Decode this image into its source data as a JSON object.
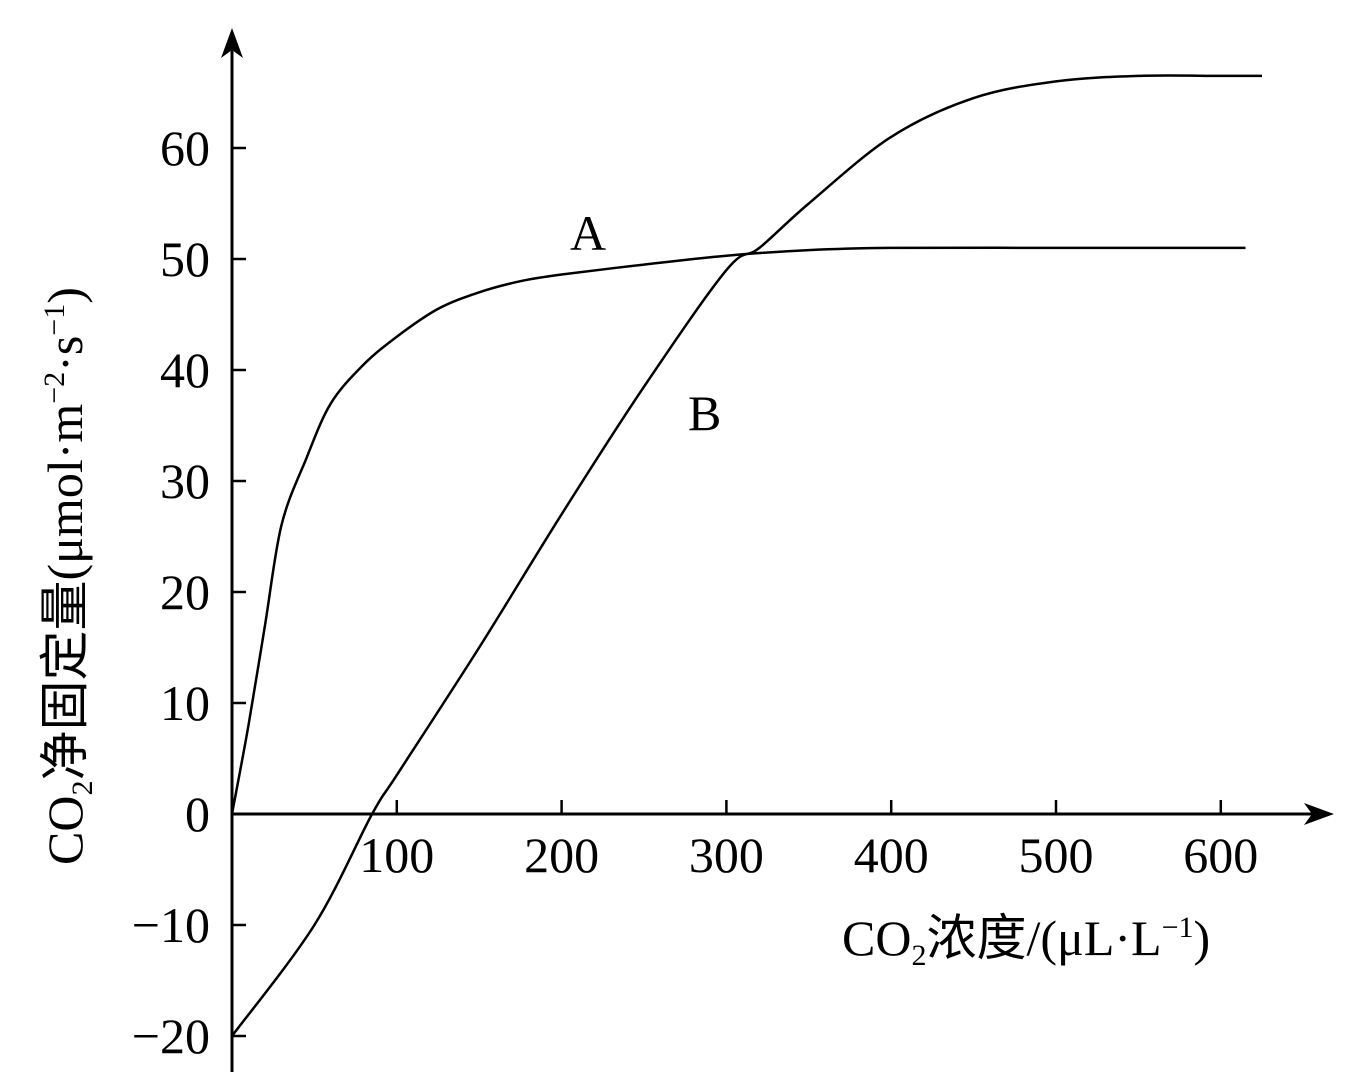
{
  "chart_data": {
    "type": "line",
    "xlabel": {
      "prefix": "CO",
      "sub": "2",
      "rest": "浓度/(μL·L",
      "sup": "−1",
      "end": ")"
    },
    "ylabel": {
      "prefix": "CO",
      "sub": "2",
      "rest": "净固定量(μmol·m",
      "sup1": "−2",
      "mid": "·s",
      "sup2": "−1",
      "end": ")"
    },
    "xlim": [
      0,
      660
    ],
    "ylim": [
      -23,
      70
    ],
    "xticks": [
      100,
      200,
      300,
      400,
      500,
      600
    ],
    "xtick_labels": [
      "100",
      "200",
      "300",
      "400",
      "500",
      "600"
    ],
    "yticks": [
      -20,
      -10,
      0,
      10,
      20,
      30,
      40,
      50,
      60
    ],
    "ytick_labels": [
      "−20",
      "−10",
      "0",
      "10",
      "20",
      "30",
      "40",
      "50",
      "60"
    ],
    "series": [
      {
        "name": "A",
        "x": [
          0,
          10,
          20,
          30,
          45,
          60,
          80,
          100,
          125,
          150,
          175,
          200,
          250,
          300,
          350,
          400,
          500,
          600,
          615
        ],
        "y": [
          0,
          8,
          17,
          26,
          32,
          37,
          40.5,
          43,
          45.5,
          47,
          48,
          48.6,
          49.5,
          50.3,
          50.8,
          51,
          51,
          51,
          51
        ]
      },
      {
        "name": "B",
        "x": [
          0,
          50,
          85,
          100,
          150,
          200,
          250,
          300,
          320,
          350,
          400,
          450,
          500,
          550,
          600,
          625
        ],
        "y": [
          -20,
          -10,
          0,
          3.5,
          15,
          27,
          38.5,
          49,
          51,
          55,
          61,
          64.5,
          66,
          66.5,
          66.5,
          66.5
        ]
      }
    ]
  }
}
